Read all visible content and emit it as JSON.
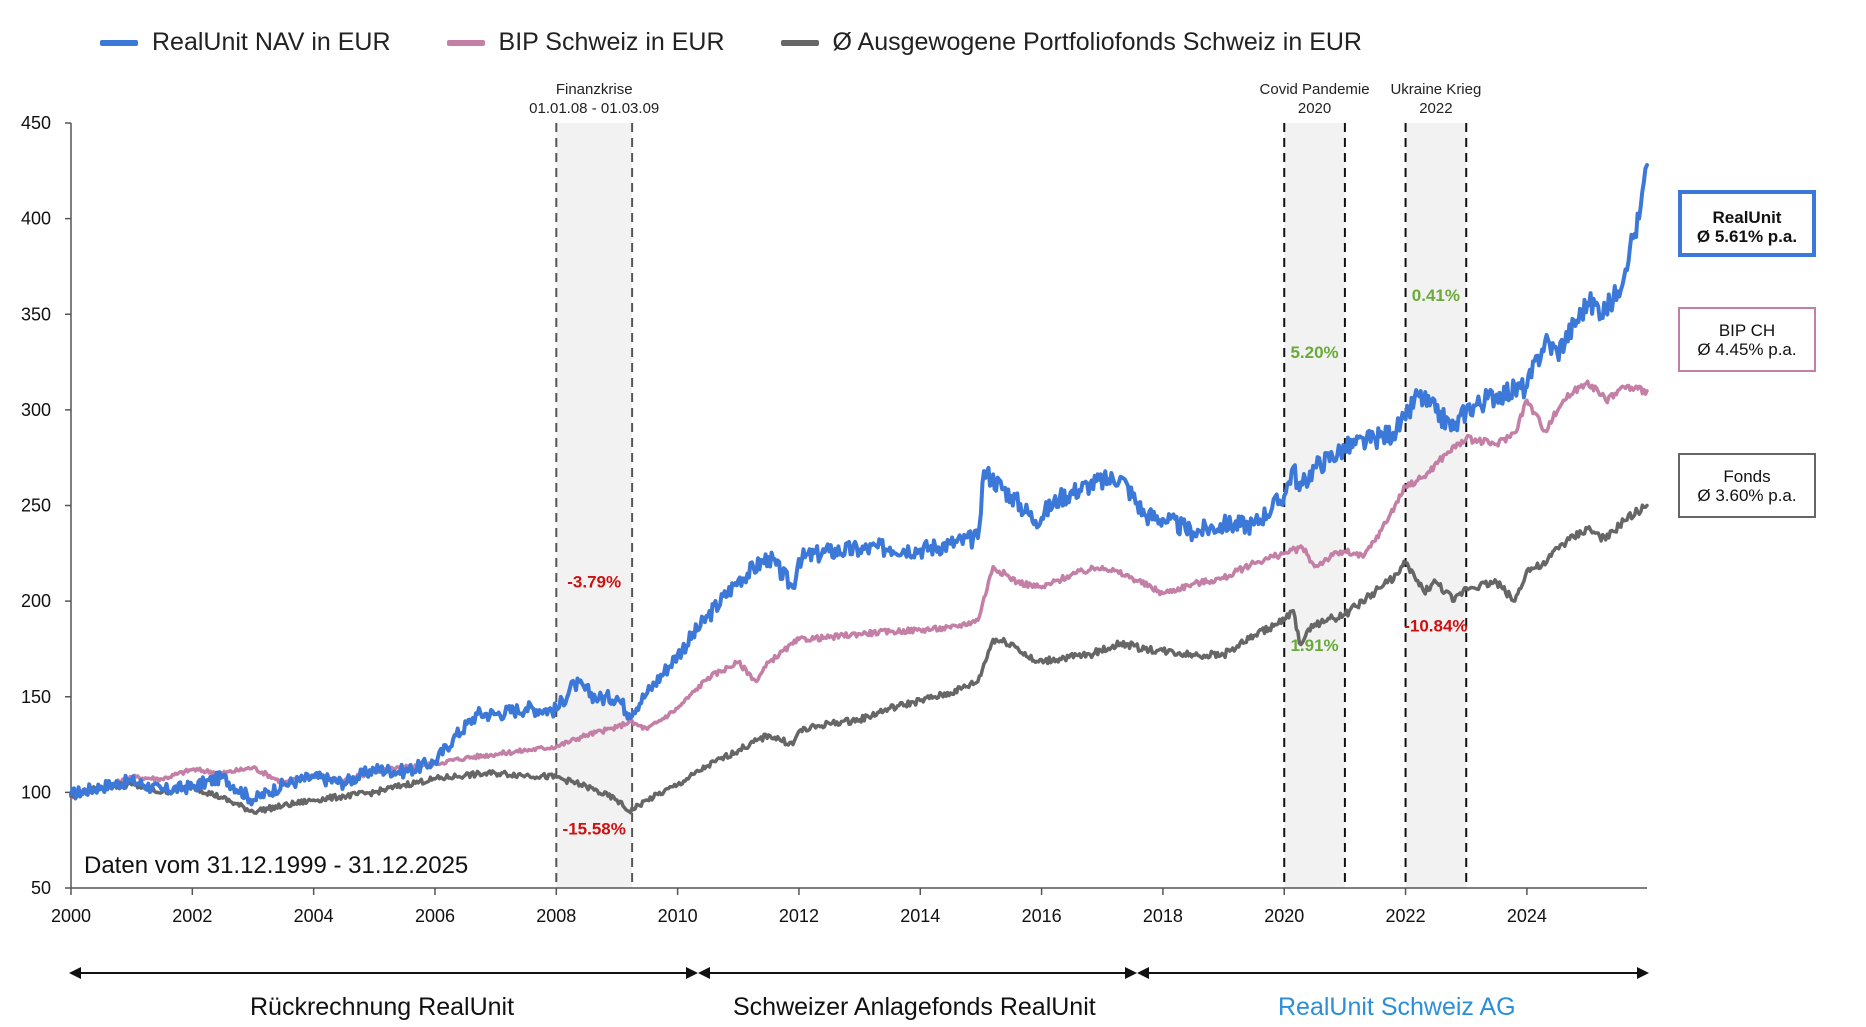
{
  "legend": [
    {
      "label": "RealUnit NAV in EUR",
      "color": "#3b78d8"
    },
    {
      "label": "BIP Schweiz in EUR",
      "color": "#c47fa6"
    },
    {
      "label": "Ø Ausgewogene Portfoliofonds Schweiz in EUR",
      "color": "#666666"
    }
  ],
  "date_note": "Daten vom 31.12.1999 - 31.12.2025",
  "summary": {
    "realunit": {
      "line1": "RealUnit",
      "line2": "Ø 5.61% p.a.",
      "color": "#3b78d8"
    },
    "bip": {
      "line1": "BIP CH",
      "line2": "Ø 4.45% p.a.",
      "color": "#c47fa6"
    },
    "fonds": {
      "line1": "Fonds",
      "line2": "Ø 3.60% p.a.",
      "color": "#666666"
    }
  },
  "periods": [
    {
      "label": "Rückrechnung RealUnit",
      "color": "#111111"
    },
    {
      "label": "Schweizer Anlagefonds RealUnit",
      "color": "#111111"
    },
    {
      "label": "RealUnit Schweiz AG",
      "color": "#2a8fd6"
    }
  ],
  "colors": {
    "negative": "#cc1111",
    "positive": "#6aaa3a",
    "band": "#f2f2f2"
  },
  "chart_data": {
    "type": "line",
    "ylim": [
      50,
      450
    ],
    "xlim": [
      2000,
      2025.98
    ],
    "yticks": [
      50,
      100,
      150,
      200,
      250,
      300,
      350,
      400,
      450
    ],
    "xticks": [
      2000,
      2002,
      2004,
      2006,
      2008,
      2010,
      2012,
      2014,
      2016,
      2018,
      2020,
      2022,
      2024
    ],
    "xticklabels": [
      "2000",
      "2002",
      "2004",
      "2006",
      "2008",
      "2010",
      "2012",
      "2014",
      "2016",
      "2018",
      "2020",
      "2022",
      "2024"
    ],
    "crisis_bands": [
      {
        "title_lines": [
          "Finanzkrise",
          "01.01.08 - 01.03.09"
        ],
        "start": 2008.0,
        "end": 2009.25,
        "style": "gray",
        "annotations": [
          {
            "text": "-3.79%",
            "y": 207,
            "kind": "negative"
          },
          {
            "text": "-15.58%",
            "y": 78,
            "kind": "negative"
          }
        ]
      },
      {
        "title_lines": [
          "Covid Pandemie",
          "2020"
        ],
        "start": 2020.0,
        "end": 2021.0,
        "style": "black",
        "annotations": [
          {
            "text": "5.20%",
            "y": 327,
            "kind": "positive"
          },
          {
            "text": "1.91%",
            "y": 174,
            "kind": "positive"
          }
        ]
      },
      {
        "title_lines": [
          "Ukraine Krieg",
          "2022"
        ],
        "start": 2022.0,
        "end": 2023.0,
        "style": "black",
        "annotations": [
          {
            "text": "0.41%",
            "y": 357,
            "kind": "positive"
          },
          {
            "text": "-10.84%",
            "y": 184,
            "kind": "negative"
          }
        ]
      }
    ],
    "series": [
      {
        "name": "RealUnit NAV in EUR",
        "color": "#3b78d8",
        "x": [
          2000,
          2000.5,
          2001,
          2001.5,
          2002,
          2002.5,
          2003,
          2003.5,
          2004,
          2004.5,
          2005,
          2005.5,
          2006,
          2006.3,
          2006.7,
          2007,
          2007.5,
          2008,
          2008.3,
          2008.7,
          2009,
          2009.2,
          2009.5,
          2010,
          2010.5,
          2011,
          2011.5,
          2011.9,
          2012,
          2012.5,
          2013,
          2013.5,
          2014,
          2014.5,
          2014.95,
          2015.05,
          2015.5,
          2015.9,
          2016.3,
          2016.8,
          2017.3,
          2017.7,
          2018,
          2018.5,
          2019,
          2019.5,
          2020,
          2020.15,
          2020.25,
          2020.5,
          2021,
          2021.5,
          2021.8,
          2022,
          2022.2,
          2022.5,
          2022.8,
          2023,
          2023.5,
          2024,
          2024.3,
          2024.5,
          2025,
          2025.3,
          2025.5,
          2025.7,
          2025.85,
          2025.98
        ],
        "y": [
          99,
          103,
          106,
          101,
          103,
          108,
          96,
          104,
          108,
          105,
          112,
          111,
          116,
          128,
          141,
          141,
          144,
          143,
          157,
          149,
          150,
          141,
          152,
          172,
          192,
          211,
          223,
          207,
          222,
          226,
          227,
          228,
          227,
          230,
          233,
          268,
          255,
          242,
          254,
          261,
          265,
          245,
          243,
          236,
          240,
          240,
          255,
          270,
          258,
          270,
          280,
          285,
          288,
          295,
          308,
          299,
          290,
          300,
          308,
          312,
          336,
          330,
          356,
          352,
          362,
          385,
          400,
          428
        ]
      },
      {
        "name": "BIP Schweiz in EUR",
        "color": "#c47fa6",
        "x": [
          2000,
          2000.5,
          2001,
          2001.5,
          2002,
          2002.5,
          2003,
          2003.5,
          2004,
          2004.5,
          2005,
          2005.5,
          2006,
          2006.5,
          2007,
          2007.5,
          2008,
          2008.5,
          2009,
          2009.2,
          2009.5,
          2010,
          2010.5,
          2011,
          2011.3,
          2011.5,
          2012,
          2012.5,
          2013,
          2013.5,
          2014,
          2014.5,
          2014.95,
          2015.2,
          2015.6,
          2016,
          2016.5,
          2017,
          2017.5,
          2018,
          2018.5,
          2019,
          2019.5,
          2020,
          2020.3,
          2020.5,
          2020.8,
          2021,
          2021.3,
          2021.6,
          2022,
          2022.3,
          2022.7,
          2023,
          2023.5,
          2023.8,
          2024,
          2024.3,
          2024.6,
          2025,
          2025.3,
          2025.6,
          2025.98
        ],
        "y": [
          98,
          102,
          108,
          107,
          112,
          110,
          113,
          105,
          109,
          106,
          111,
          113,
          115,
          118,
          120,
          122,
          124,
          130,
          134,
          137,
          133,
          144,
          160,
          168,
          158,
          168,
          180,
          181,
          183,
          184,
          185,
          186,
          190,
          218,
          210,
          207,
          214,
          218,
          212,
          204,
          209,
          212,
          220,
          225,
          228,
          218,
          224,
          226,
          223,
          237,
          260,
          265,
          278,
          285,
          282,
          288,
          305,
          289,
          305,
          315,
          305,
          312,
          310
        ]
      },
      {
        "name": "Ø Ausgewogene Portfoliofonds Schweiz in EUR",
        "color": "#666666",
        "x": [
          2000,
          2000.5,
          2001,
          2001.5,
          2002,
          2002.5,
          2003,
          2003.5,
          2004,
          2004.5,
          2005,
          2005.5,
          2006,
          2006.5,
          2007,
          2007.5,
          2008,
          2008.5,
          2009,
          2009.2,
          2009.5,
          2010,
          2010.5,
          2011,
          2011.5,
          2011.9,
          2012,
          2012.5,
          2013,
          2013.5,
          2014,
          2014.5,
          2014.95,
          2015.2,
          2015.5,
          2015.9,
          2016.3,
          2016.8,
          2017.3,
          2017.7,
          2018,
          2018.5,
          2019,
          2019.5,
          2020,
          2020.15,
          2020.25,
          2020.5,
          2021,
          2021.5,
          2021.9,
          2022,
          2022.3,
          2022.5,
          2022.8,
          2023,
          2023.5,
          2023.8,
          2024,
          2024.3,
          2024.5,
          2025,
          2025.3,
          2025.6,
          2025.98
        ],
        "y": [
          98,
          103,
          104,
          100,
          103,
          97,
          90,
          93,
          96,
          98,
          100,
          104,
          107,
          109,
          110,
          109,
          108,
          103,
          96,
          90,
          96,
          104,
          114,
          122,
          130,
          125,
          132,
          136,
          138,
          144,
          148,
          152,
          158,
          180,
          178,
          168,
          170,
          172,
          178,
          175,
          174,
          172,
          172,
          182,
          190,
          195,
          178,
          188,
          193,
          205,
          215,
          220,
          205,
          210,
          200,
          207,
          210,
          200,
          216,
          219,
          228,
          238,
          232,
          242,
          250
        ]
      }
    ]
  }
}
